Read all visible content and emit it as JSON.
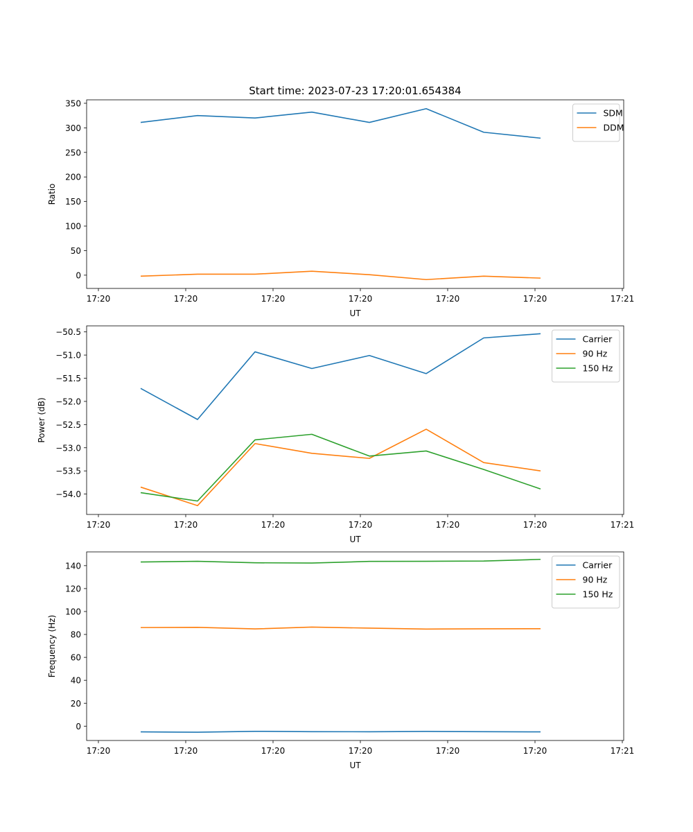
{
  "title": "Start time: 2023-07-23 17:20:01.654384",
  "chart_data": [
    {
      "type": "line",
      "title": "Start time: 2023-07-23 17:20:01.654384",
      "xlabel": "UT",
      "ylabel": "Ratio",
      "xtick_labels": [
        "17:20",
        "17:20",
        "17:20",
        "17:20",
        "17:20",
        "17:20",
        "17:21"
      ],
      "ylim": [
        -27,
        357
      ],
      "yticks": [
        0,
        50,
        100,
        150,
        200,
        250,
        300,
        350
      ],
      "legend_position": "top-right",
      "grid": false,
      "series": [
        {
          "name": "SDM",
          "color": "#1f77b4",
          "values": [
            311,
            325,
            320,
            332,
            311,
            339,
            291,
            279
          ]
        },
        {
          "name": "DDM",
          "color": "#ff7f0e",
          "values": [
            -2,
            2,
            2,
            8,
            1,
            -9,
            -2,
            -6
          ]
        }
      ]
    },
    {
      "type": "line",
      "xlabel": "UT",
      "ylabel": "Power (dB)",
      "xtick_labels": [
        "17:20",
        "17:20",
        "17:20",
        "17:20",
        "17:20",
        "17:20",
        "17:21"
      ],
      "ylim": [
        -54.44,
        -50.37
      ],
      "yticks": [
        -54.0,
        -53.5,
        -53.0,
        -52.5,
        -52.0,
        -51.5,
        -51.0,
        -50.5
      ],
      "ytick_labels": [
        "−54.0",
        "−53.5",
        "−53.0",
        "−52.5",
        "−52.0",
        "−51.5",
        "−51.0",
        "−50.5"
      ],
      "legend_position": "top-right",
      "grid": false,
      "series": [
        {
          "name": "Carrier",
          "color": "#1f77b4",
          "values": [
            -51.72,
            -52.39,
            -50.93,
            -51.29,
            -51.01,
            -51.4,
            -50.63,
            -50.54
          ]
        },
        {
          "name": "90 Hz",
          "color": "#ff7f0e",
          "values": [
            -53.85,
            -54.25,
            -52.91,
            -53.12,
            -53.23,
            -52.6,
            -53.32,
            -53.5
          ]
        },
        {
          "name": "150 Hz",
          "color": "#2ca02c",
          "values": [
            -53.97,
            -54.15,
            -52.83,
            -52.71,
            -53.18,
            -53.07,
            -53.47,
            -53.89
          ]
        }
      ]
    },
    {
      "type": "line",
      "xlabel": "UT",
      "ylabel": "Frequency (Hz)",
      "xtick_labels": [
        "17:20",
        "17:20",
        "17:20",
        "17:20",
        "17:20",
        "17:20",
        "17:21"
      ],
      "ylim": [
        -12.5,
        152
      ],
      "yticks": [
        0,
        20,
        40,
        60,
        80,
        100,
        120,
        140
      ],
      "legend_position": "top-right",
      "grid": false,
      "series": [
        {
          "name": "Carrier",
          "color": "#1f77b4",
          "values": [
            -5.0,
            -5.3,
            -4.5,
            -4.8,
            -4.9,
            -4.6,
            -4.8,
            -5.0
          ]
        },
        {
          "name": "90 Hz",
          "color": "#ff7f0e",
          "values": [
            86.0,
            86.2,
            84.8,
            86.4,
            85.5,
            84.7,
            84.9,
            85.0
          ]
        },
        {
          "name": "150 Hz",
          "color": "#2ca02c",
          "values": [
            143.2,
            143.8,
            142.5,
            142.3,
            143.7,
            143.8,
            144.0,
            145.5
          ]
        }
      ]
    }
  ]
}
